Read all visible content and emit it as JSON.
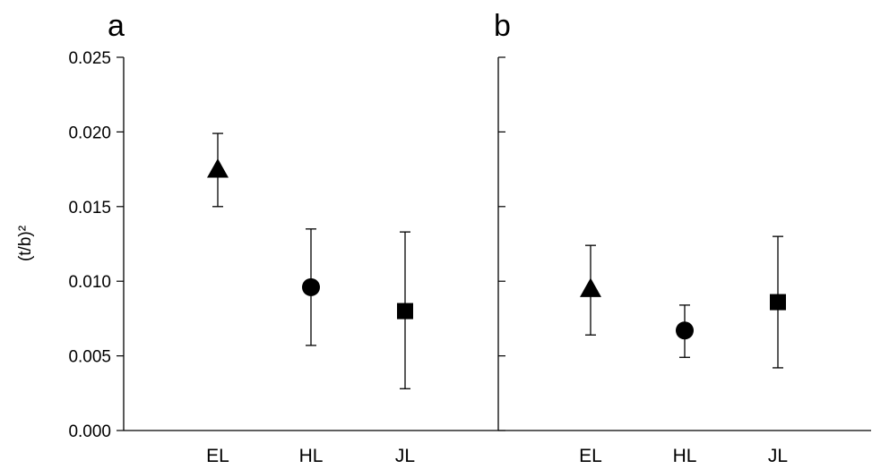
{
  "chart_data": {
    "ylabel": "(t/b)²",
    "y_ticks": [
      "0.000",
      "0.005",
      "0.010",
      "0.015",
      "0.020",
      "0.025"
    ],
    "ylim": [
      0,
      0.025
    ],
    "panels": [
      {
        "label": "a",
        "type": "scatter",
        "categories": [
          "EL",
          "HL",
          "JL"
        ],
        "markers": [
          "triangle",
          "circle",
          "square"
        ],
        "values": [
          0.0175,
          0.0096,
          0.008
        ],
        "err_low": [
          0.015,
          0.0057,
          0.0028
        ],
        "err_high": [
          0.0199,
          0.0135,
          0.0133
        ]
      },
      {
        "label": "b",
        "type": "scatter",
        "categories": [
          "EL",
          "HL",
          "JL"
        ],
        "markers": [
          "triangle",
          "circle",
          "square"
        ],
        "values": [
          0.0095,
          0.0067,
          0.0086
        ],
        "err_low": [
          0.0064,
          0.0049,
          0.0042
        ],
        "err_high": [
          0.0124,
          0.0084,
          0.013
        ]
      }
    ]
  }
}
